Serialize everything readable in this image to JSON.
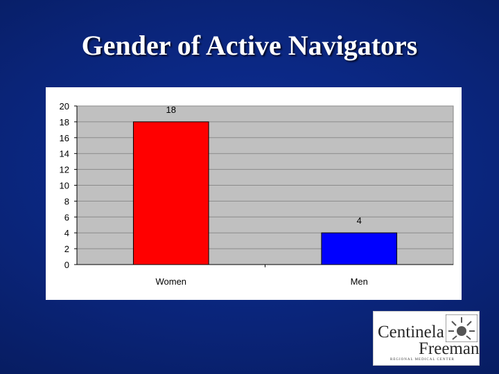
{
  "slide": {
    "title": "Gender of Active Navigators"
  },
  "logo": {
    "line1": "Centinela",
    "line2": "Freeman",
    "subtitle": "REGIONAL MEDICAL CENTER"
  },
  "colors": {
    "background": "#0a2478",
    "plot_area": "#c0c0c0",
    "women_bar": "#ff0000",
    "men_bar": "#0000ff"
  },
  "chart_data": {
    "type": "bar",
    "categories": [
      "Women",
      "Men"
    ],
    "values": [
      18,
      4
    ],
    "bar_colors": [
      "#ff0000",
      "#0000ff"
    ],
    "data_labels": [
      "18",
      "4"
    ],
    "ylim": [
      0,
      20
    ],
    "yticks": [
      0,
      2,
      4,
      6,
      8,
      10,
      12,
      14,
      16,
      18,
      20
    ],
    "grid": true,
    "legend": "none",
    "title": "",
    "xlabel": "",
    "ylabel": ""
  }
}
